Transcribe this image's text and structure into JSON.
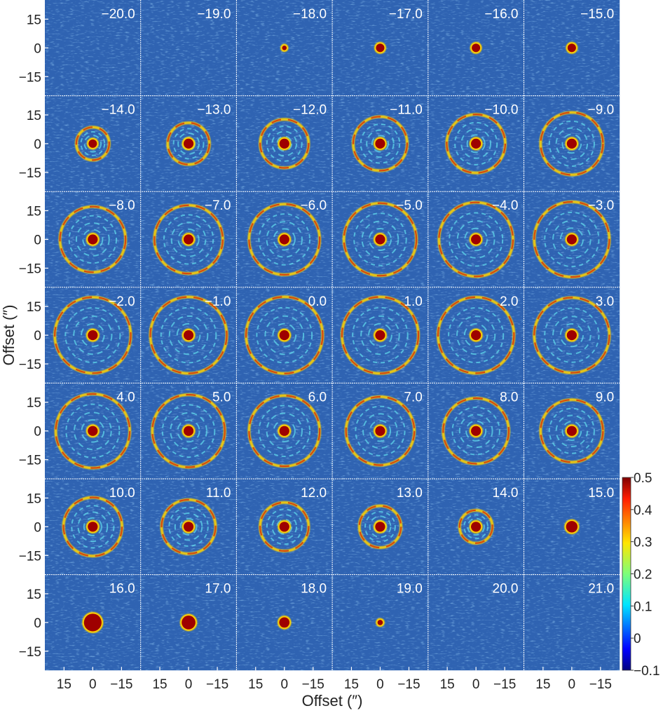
{
  "chart_data": {
    "type": "heatmap",
    "layout": "channel-map grid, 6 columns x 7 rows",
    "panel_labels": [
      "−20.0",
      "−19.0",
      "−18.0",
      "−17.0",
      "−16.0",
      "−15.0",
      "−14.0",
      "−13.0",
      "−12.0",
      "−11.0",
      "−10.0",
      "−9.0",
      "−8.0",
      "−7.0",
      "−6.0",
      "−5.0",
      "−4.0",
      "−3.0",
      "−2.0",
      "−1.0",
      "0.0",
      "1.0",
      "2.0",
      "3.0",
      "4.0",
      "5.0",
      "6.0",
      "7.0",
      "8.0",
      "9.0",
      "10.0",
      "11.0",
      "12.0",
      "13.0",
      "14.0",
      "15.0",
      "16.0",
      "17.0",
      "18.0",
      "19.0",
      "20.0",
      "21.0"
    ],
    "panel_values": [
      -20,
      -19,
      -18,
      -17,
      -16,
      -15,
      -14,
      -13,
      -12,
      -11,
      -10,
      -9,
      -8,
      -7,
      -6,
      -5,
      -4,
      -3,
      -2,
      -1,
      0,
      1,
      2,
      3,
      4,
      5,
      6,
      7,
      8,
      9,
      10,
      11,
      12,
      13,
      14,
      15,
      16,
      17,
      18,
      19,
      20,
      21
    ],
    "xlabel": "Offset (″)",
    "ylabel": "Offset (″)",
    "x_ticks": [
      "15",
      "0",
      "−15"
    ],
    "x_tick_values": [
      15,
      0,
      -15
    ],
    "y_ticks": [
      "15",
      "0",
      "−15"
    ],
    "y_tick_values": [
      15,
      0,
      -15
    ],
    "axis_range": [
      25,
      -25
    ],
    "colorbar": {
      "range": [
        -0.1,
        0.5
      ],
      "ticks": [
        "0.5",
        "0.4",
        "0.3",
        "0.2",
        "0.1",
        "0",
        "−0.1"
      ],
      "tick_values": [
        0.5,
        0.4,
        0.3,
        0.2,
        0.1,
        0,
        -0.1
      ],
      "colormap": "jet"
    },
    "colors": {
      "background": "#2f63b2",
      "ring": "#ffd200",
      "peak": "#9e0000",
      "grid_line": "#ffffff"
    }
  }
}
